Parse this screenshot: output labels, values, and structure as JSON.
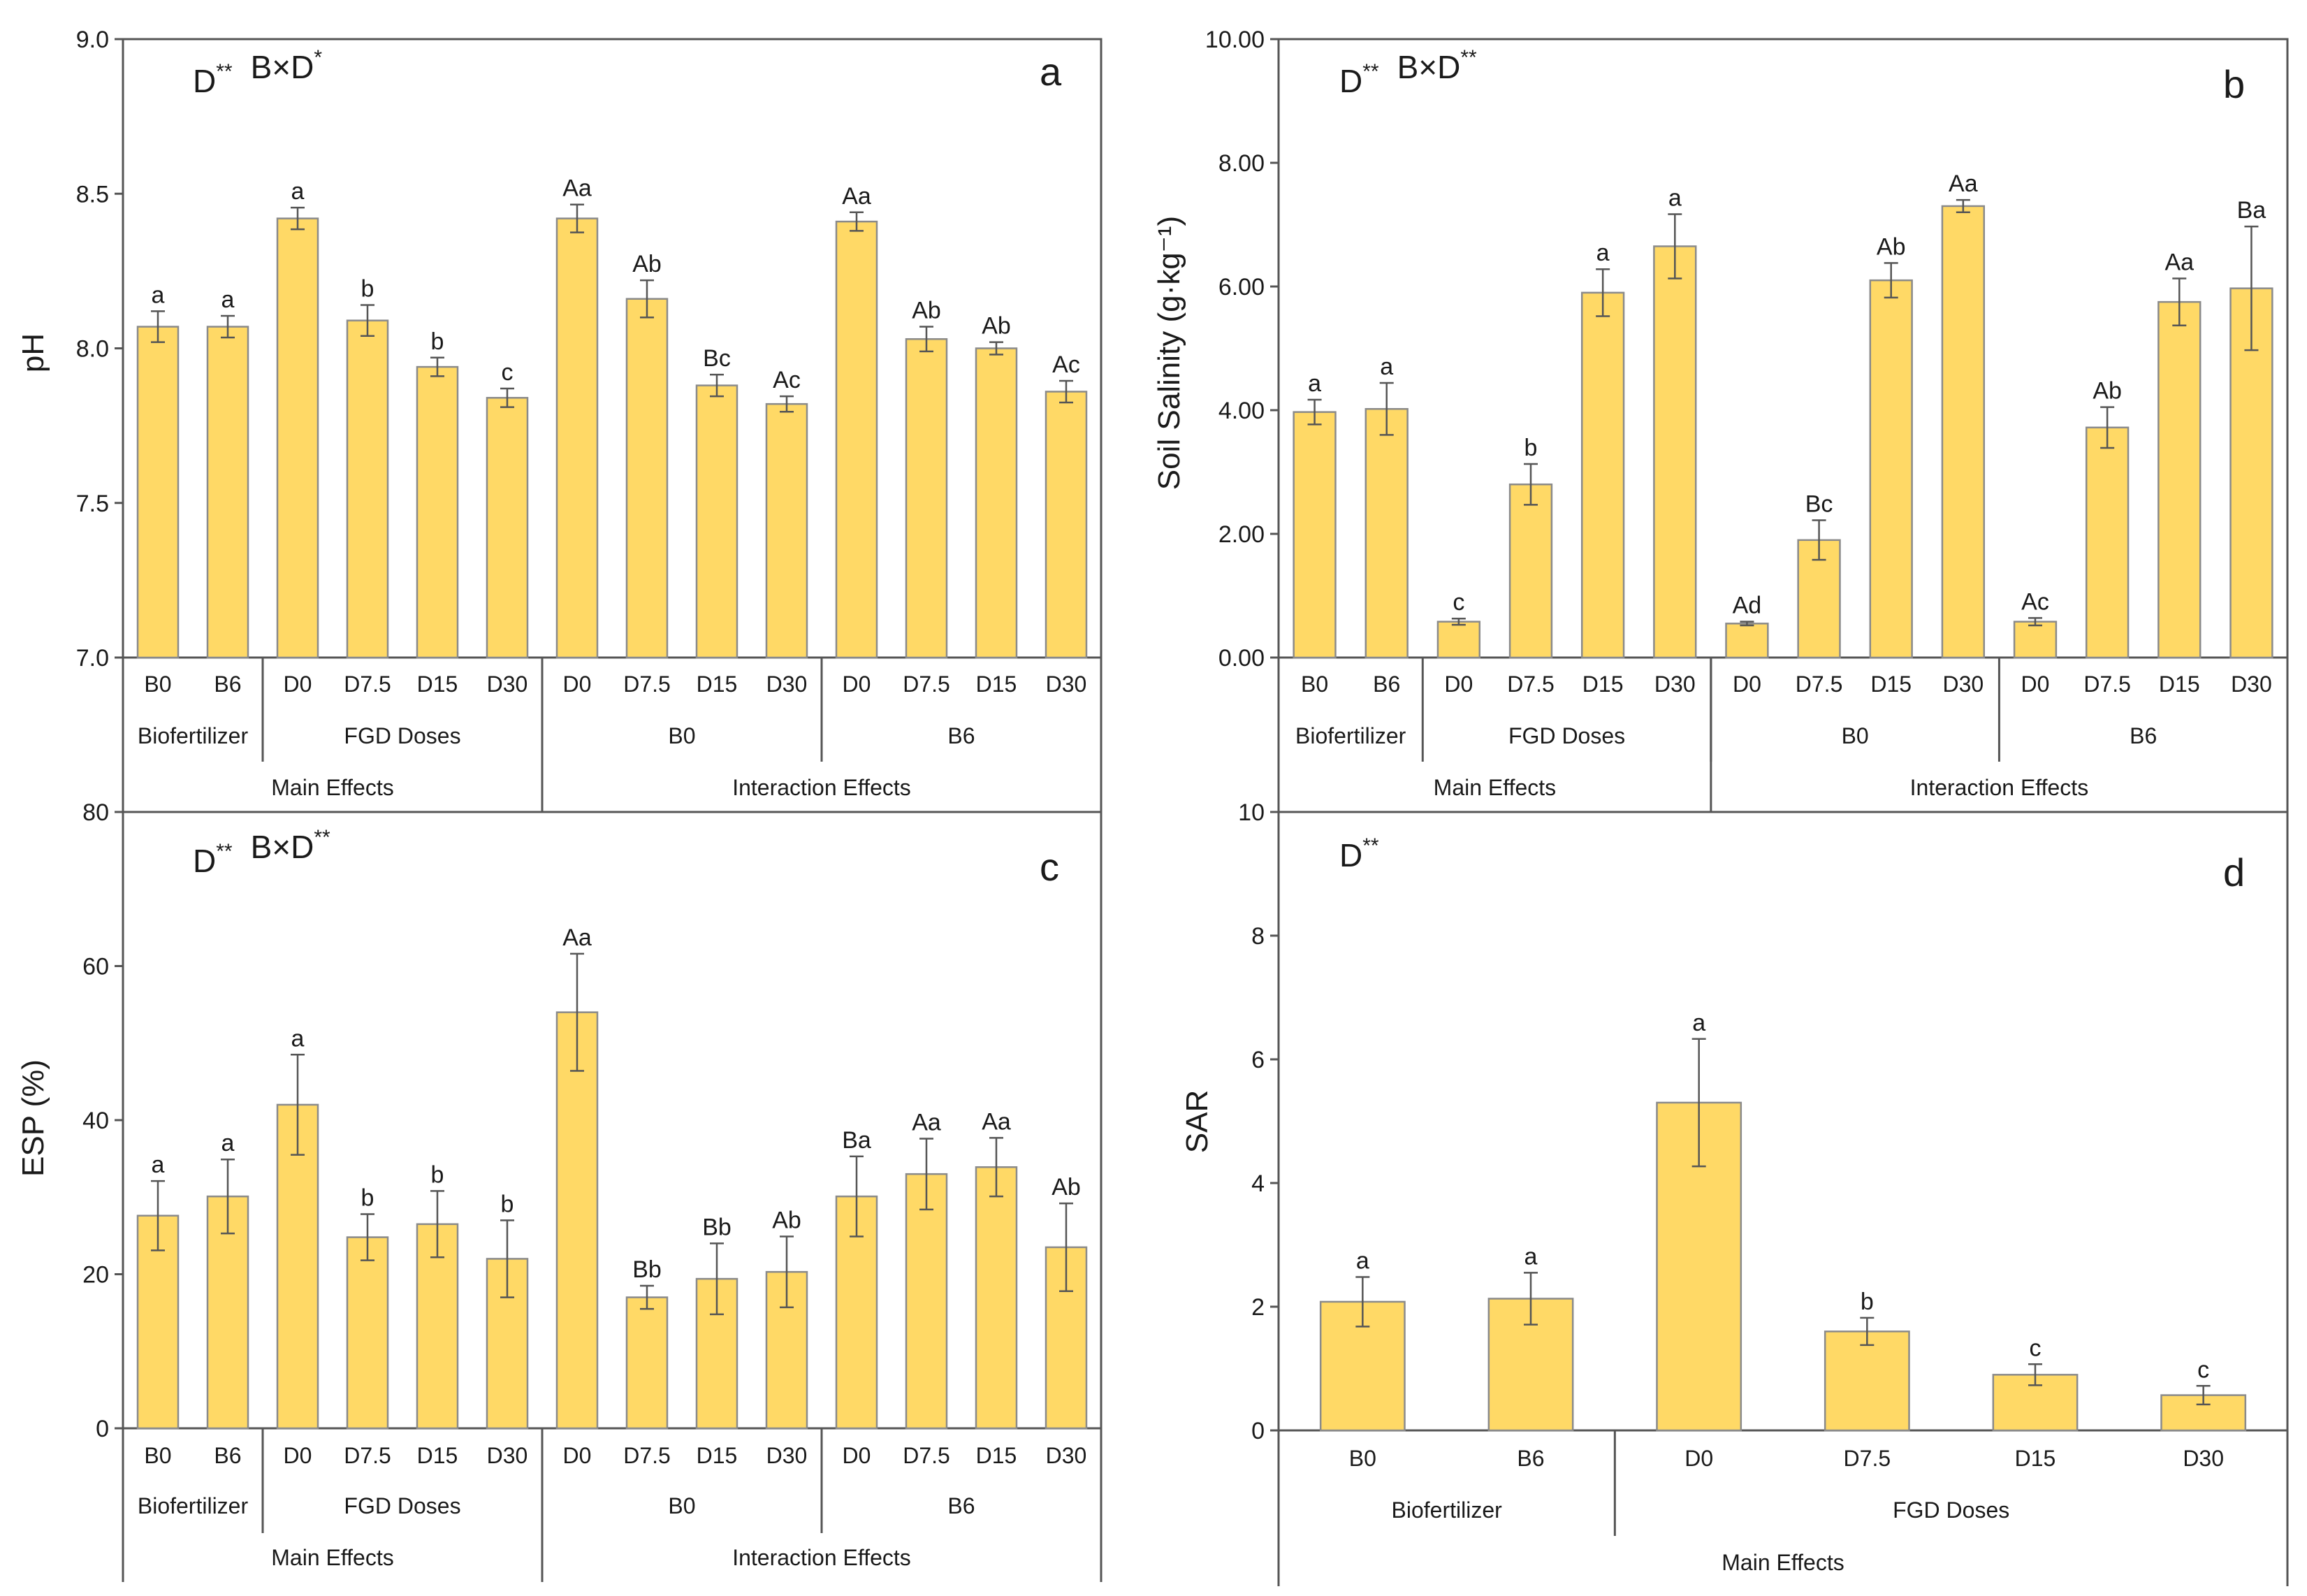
{
  "colors": {
    "bar": "#FFD966",
    "axis": "#555555",
    "text": "#1a1a1a"
  },
  "chart_data": [
    {
      "id": "a",
      "type": "bar",
      "panel_letter": "a",
      "significance": [
        "D**",
        "B×D*"
      ],
      "ylabel": "pH",
      "ylim": [
        7.0,
        9.0
      ],
      "yticks": [
        "7.0",
        "7.5",
        "8.0",
        "8.5",
        "9.0"
      ],
      "categories": [
        "B0",
        "B6",
        "D0",
        "D7.5",
        "D15",
        "D30",
        "D0",
        "D7.5",
        "D15",
        "D30",
        "D0",
        "D7.5",
        "D15",
        "D30"
      ],
      "values": [
        8.07,
        8.07,
        8.42,
        8.09,
        7.94,
        7.84,
        8.42,
        8.16,
        7.88,
        7.82,
        8.41,
        8.03,
        8.0,
        7.86
      ],
      "errors": [
        0.05,
        0.035,
        0.035,
        0.05,
        0.03,
        0.03,
        0.045,
        0.06,
        0.035,
        0.025,
        0.03,
        0.04,
        0.02,
        0.035
      ],
      "annotations": [
        "a",
        "a",
        "a",
        "b",
        "b",
        "c",
        "Aa",
        "Ab",
        "Bc",
        "Ac",
        "Aa",
        "Ab",
        "Ab",
        "Ac"
      ],
      "subgroups": [
        {
          "label": "Biofertilizer",
          "span": [
            0,
            1
          ]
        },
        {
          "label": "FGD Doses",
          "span": [
            2,
            5
          ]
        },
        {
          "label": "B0",
          "span": [
            6,
            9
          ]
        },
        {
          "label": "B6",
          "span": [
            10,
            13
          ]
        }
      ],
      "groups": [
        {
          "label": "Main Effects",
          "span": [
            0,
            5
          ]
        },
        {
          "label": "Interaction Effects",
          "span": [
            6,
            13
          ]
        }
      ]
    },
    {
      "id": "b",
      "type": "bar",
      "panel_letter": "b",
      "significance": [
        "D**",
        "B×D**"
      ],
      "ylabel": "Soil Salinity (g·kg⁻¹)",
      "ylim": [
        0,
        10
      ],
      "yticks": [
        "0.00",
        "2.00",
        "4.00",
        "6.00",
        "8.00",
        "10.00"
      ],
      "categories": [
        "B0",
        "B6",
        "D0",
        "D7.5",
        "D15",
        "D30",
        "D0",
        "D7.5",
        "D15",
        "D30",
        "D0",
        "D7.5",
        "D15",
        "D30"
      ],
      "values": [
        3.97,
        4.02,
        0.58,
        2.8,
        5.9,
        6.65,
        0.55,
        1.9,
        6.1,
        7.3,
        0.58,
        3.72,
        5.75,
        5.97
      ],
      "errors": [
        0.2,
        0.42,
        0.05,
        0.33,
        0.38,
        0.52,
        0.03,
        0.32,
        0.28,
        0.1,
        0.06,
        0.33,
        0.38,
        1.0
      ],
      "annotations": [
        "a",
        "a",
        "c",
        "b",
        "a",
        "a",
        "Ad",
        "Bc",
        "Ab",
        "Aa",
        "Ac",
        "Ab",
        "Aa",
        "Ba"
      ],
      "subgroups": [
        {
          "label": "Biofertilizer",
          "span": [
            0,
            1
          ]
        },
        {
          "label": "FGD Doses",
          "span": [
            2,
            5
          ]
        },
        {
          "label": "B0",
          "span": [
            6,
            9
          ]
        },
        {
          "label": "B6",
          "span": [
            10,
            13
          ]
        }
      ],
      "groups": [
        {
          "label": "Main Effects",
          "span": [
            0,
            5
          ]
        },
        {
          "label": "Interaction Effects",
          "span": [
            6,
            13
          ]
        }
      ]
    },
    {
      "id": "c",
      "type": "bar",
      "panel_letter": "c",
      "significance": [
        "D**",
        "B×D**"
      ],
      "ylabel": "ESP (%)",
      "ylim": [
        0,
        80
      ],
      "yticks": [
        "0",
        "20",
        "40",
        "60",
        "80"
      ],
      "categories": [
        "B0",
        "B6",
        "D0",
        "D7.5",
        "D15",
        "D30",
        "D0",
        "D7.5",
        "D15",
        "D30",
        "D0",
        "D7.5",
        "D15",
        "D30"
      ],
      "values": [
        27.6,
        30.1,
        42.0,
        24.8,
        26.5,
        22.0,
        54.0,
        17.0,
        19.4,
        20.3,
        30.1,
        33.0,
        33.9,
        23.5
      ],
      "errors": [
        4.5,
        4.8,
        6.5,
        3.0,
        4.3,
        5.0,
        7.6,
        1.5,
        4.6,
        4.6,
        5.2,
        4.6,
        3.8,
        5.7
      ],
      "annotations": [
        "a",
        "a",
        "a",
        "b",
        "b",
        "b",
        "Aa",
        "Bb",
        "Bb",
        "Ab",
        "Ba",
        "Aa",
        "Aa",
        "Ab"
      ],
      "subgroups": [
        {
          "label": "Biofertilizer",
          "span": [
            0,
            1
          ]
        },
        {
          "label": "FGD Doses",
          "span": [
            2,
            5
          ]
        },
        {
          "label": "B0",
          "span": [
            6,
            9
          ]
        },
        {
          "label": "B6",
          "span": [
            10,
            13
          ]
        }
      ],
      "groups": [
        {
          "label": "Main Effects",
          "span": [
            0,
            5
          ]
        },
        {
          "label": "Interaction Effects",
          "span": [
            6,
            13
          ]
        }
      ]
    },
    {
      "id": "d",
      "type": "bar",
      "panel_letter": "d",
      "significance": [
        "D**"
      ],
      "ylabel": "SAR",
      "ylim": [
        0,
        10
      ],
      "yticks": [
        "0",
        "2",
        "4",
        "6",
        "8",
        "10"
      ],
      "categories": [
        "B0",
        "B6",
        "D0",
        "D7.5",
        "D15",
        "D30"
      ],
      "values": [
        2.08,
        2.13,
        5.3,
        1.6,
        0.9,
        0.57
      ],
      "errors": [
        0.4,
        0.42,
        1.03,
        0.22,
        0.17,
        0.15
      ],
      "annotations": [
        "a",
        "a",
        "a",
        "b",
        "c",
        "c"
      ],
      "subgroups": [
        {
          "label": "Biofertilizer",
          "span": [
            0,
            1
          ]
        },
        {
          "label": "FGD Doses",
          "span": [
            2,
            5
          ]
        }
      ],
      "groups": [
        {
          "label": "Main Effects",
          "span": [
            0,
            5
          ]
        }
      ]
    }
  ]
}
